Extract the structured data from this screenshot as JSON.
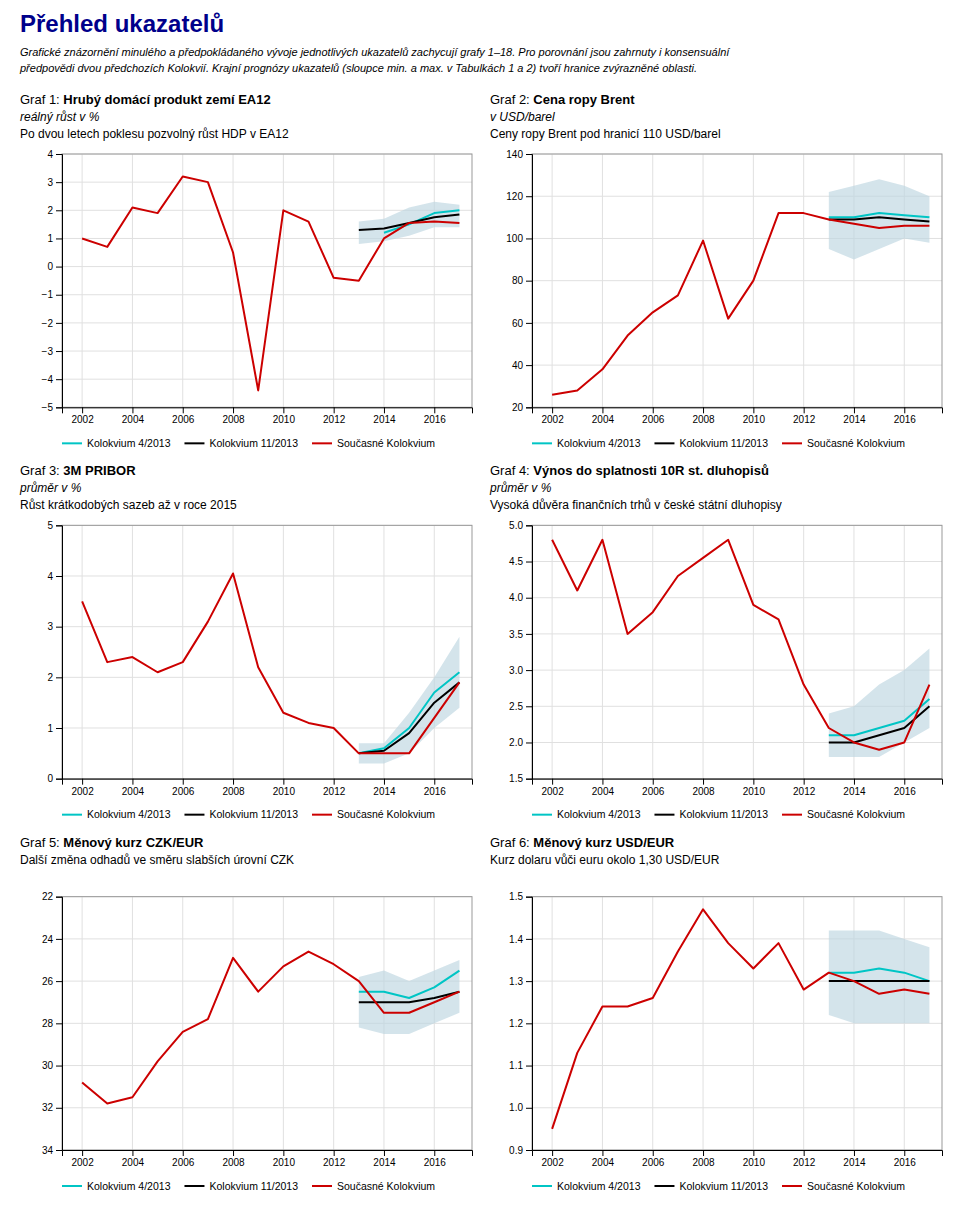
{
  "title": "Přehled ukazatelů",
  "color": "#00008B",
  "subtitle": [
    "Grafické znázornění minulého a předpokládaného vývoje jednotlivých ukazatelů zachycují grafy 1–18. Pro porovnání jsou zahrnuty i konsensuální",
    "předpovědi dvou předchozích Kolokvií. Krajní prognózy ukazatelů (sloupce min. a max. v Tabulkách 1 a 2) tvoří hranice zvýrazněné oblasti."
  ],
  "chart_data": [
    {
      "type": "line",
      "label": "Graf 1: ",
      "title": "Hrubý domácí produkt zemí EA12",
      "ylabel": "reálný růst v %",
      "subtitle": "Po dvou letech poklesu pozvolný růst HDP v EA12",
      "xlim": [
        2001.2,
        2017.5
      ],
      "xticks": [
        2002,
        2004,
        2006,
        2008,
        2010,
        2012,
        2014,
        2016
      ],
      "ylim": [
        -5,
        4
      ],
      "yticks": [
        {
          "value": -5,
          "label": "−5"
        },
        {
          "value": -4,
          "label": "−4"
        },
        {
          "value": -3,
          "label": "−3"
        },
        {
          "value": -2,
          "label": "−2"
        },
        {
          "value": -1,
          "label": "−1"
        },
        0,
        1,
        2,
        3,
        4
      ],
      "grid": true,
      "legend": "lower left",
      "band": {
        "color": "#BDD5E0",
        "x": [
          2013,
          2014,
          2015,
          2016,
          2017
        ],
        "low": [
          0.8,
          0.9,
          1.1,
          1.4,
          1.4
        ],
        "high": [
          1.6,
          1.7,
          2.1,
          2.3,
          2.2
        ]
      },
      "series": [
        {
          "name": "Kolokvium 4/2013",
          "color": "#00C5C5",
          "x": [
            2014,
            2015,
            2016,
            2017
          ],
          "values": [
            1.2,
            1.5,
            1.9,
            2.0
          ]
        },
        {
          "name": "Kolokvium 11/2013",
          "color": "#000000",
          "x": [
            2013,
            2014,
            2015,
            2016,
            2017
          ],
          "values": [
            1.3,
            1.35,
            1.55,
            1.75,
            1.85
          ]
        },
        {
          "name": "Současné Kolokvium",
          "color": "#CC0000",
          "x": [
            2002,
            2003,
            2004,
            2005,
            2006,
            2007,
            2008,
            2009,
            2010,
            2011,
            2012,
            2013,
            2014,
            2015,
            2016,
            2017
          ],
          "values": [
            1.0,
            0.7,
            2.1,
            1.9,
            3.2,
            3.0,
            0.5,
            -4.4,
            2.0,
            1.6,
            -0.4,
            -0.5,
            1.0,
            1.55,
            1.6,
            1.55
          ]
        }
      ]
    },
    {
      "type": "line",
      "label": "Graf 2: ",
      "title": "Cena ropy Brent",
      "ylabel": "v USD/barel",
      "subtitle": "Ceny ropy Brent pod hranicí 110 USD/barel",
      "xlim": [
        2001.2,
        2017.5
      ],
      "xticks": [
        2002,
        2004,
        2006,
        2008,
        2010,
        2012,
        2014,
        2016
      ],
      "ylim": [
        20,
        140
      ],
      "yticks": [
        20,
        40,
        60,
        80,
        100,
        120,
        140
      ],
      "grid": true,
      "legend": "lower left",
      "band": {
        "color": "#BDD5E0",
        "x": [
          2013,
          2014,
          2015,
          2016,
          2017
        ],
        "low": [
          95,
          90,
          95,
          100,
          98
        ],
        "high": [
          122,
          125,
          128,
          125,
          120
        ]
      },
      "series": [
        {
          "name": "Kolokvium 4/2013",
          "color": "#00C5C5",
          "x": [
            2013,
            2014,
            2015,
            2016,
            2017
          ],
          "values": [
            110,
            110,
            112,
            111,
            110
          ]
        },
        {
          "name": "Kolokvium 11/2013",
          "color": "#000000",
          "x": [
            2013,
            2014,
            2015,
            2016,
            2017
          ],
          "values": [
            109,
            109,
            110,
            109,
            108
          ]
        },
        {
          "name": "Současné Kolokvium",
          "color": "#CC0000",
          "x": [
            2002,
            2003,
            2004,
            2005,
            2006,
            2007,
            2008,
            2009,
            2010,
            2011,
            2012,
            2013,
            2014,
            2015,
            2016,
            2017
          ],
          "values": [
            26,
            28,
            38,
            54,
            65,
            73,
            99,
            62,
            80,
            112,
            112,
            109,
            107,
            105,
            106,
            106
          ]
        }
      ]
    },
    {
      "type": "line",
      "label": "Graf 3: ",
      "title": "3M PRIBOR",
      "ylabel": "průměr v %",
      "subtitle": "Růst krátkodobých sazeb až v roce 2015",
      "xlim": [
        2001.2,
        2017.5
      ],
      "xticks": [
        2002,
        2004,
        2006,
        2008,
        2010,
        2012,
        2014,
        2016
      ],
      "ylim": [
        0,
        5
      ],
      "yticks": [
        0,
        1,
        2,
        3,
        4,
        5
      ],
      "grid": true,
      "legend": "lower left",
      "band": {
        "color": "#BDD5E0",
        "x": [
          2013,
          2014,
          2015,
          2016,
          2017
        ],
        "low": [
          0.3,
          0.3,
          0.5,
          1.0,
          1.4
        ],
        "high": [
          0.7,
          0.7,
          1.3,
          2.0,
          2.8
        ]
      },
      "series": [
        {
          "name": "Kolokvium 4/2013",
          "color": "#00C5C5",
          "x": [
            2013,
            2014,
            2015,
            2016,
            2017
          ],
          "values": [
            0.5,
            0.6,
            1.0,
            1.7,
            2.1
          ]
        },
        {
          "name": "Kolokvium 11/2013",
          "color": "#000000",
          "x": [
            2013,
            2014,
            2015,
            2016,
            2017
          ],
          "values": [
            0.5,
            0.55,
            0.9,
            1.5,
            1.9
          ]
        },
        {
          "name": "Současné Kolokvium",
          "color": "#CC0000",
          "x": [
            2002,
            2003,
            2004,
            2005,
            2006,
            2007,
            2008,
            2009,
            2010,
            2011,
            2012,
            2013,
            2014,
            2015,
            2016,
            2017
          ],
          "values": [
            3.5,
            2.3,
            2.4,
            2.1,
            2.3,
            3.1,
            4.05,
            2.2,
            1.3,
            1.1,
            1.0,
            0.5,
            0.5,
            0.5,
            1.2,
            1.9
          ]
        }
      ]
    },
    {
      "type": "line",
      "label": "Graf 4: ",
      "title": "Výnos do splatnosti 10R st. dluhopisů",
      "ylabel": "průměr v %",
      "subtitle": "Vysoká důvěra finančních trhů v české státní dluhopisy",
      "xlim": [
        2001.2,
        2017.5
      ],
      "xticks": [
        2002,
        2004,
        2006,
        2008,
        2010,
        2012,
        2014,
        2016
      ],
      "ylim": [
        1.5,
        5.0
      ],
      "yticks": [
        1.5,
        {
          "value": 2.0,
          "label": "2.0"
        },
        2.5,
        {
          "value": 3.0,
          "label": "3.0"
        },
        3.5,
        {
          "value": 4.0,
          "label": "4.0"
        },
        4.5,
        {
          "value": 5.0,
          "label": "5.0"
        }
      ],
      "grid": true,
      "legend": "lower left",
      "band": {
        "color": "#BDD5E0",
        "x": [
          2013,
          2014,
          2015,
          2016,
          2017
        ],
        "low": [
          1.8,
          1.8,
          1.8,
          2.0,
          2.2
        ],
        "high": [
          2.4,
          2.5,
          2.8,
          3.0,
          3.3
        ]
      },
      "series": [
        {
          "name": "Kolokvium 4/2013",
          "color": "#00C5C5",
          "x": [
            2013,
            2014,
            2015,
            2016,
            2017
          ],
          "values": [
            2.1,
            2.1,
            2.2,
            2.3,
            2.6
          ]
        },
        {
          "name": "Kolokvium 11/2013",
          "color": "#000000",
          "x": [
            2013,
            2014,
            2015,
            2016,
            2017
          ],
          "values": [
            2.0,
            2.0,
            2.1,
            2.2,
            2.5
          ]
        },
        {
          "name": "Současné Kolokvium",
          "color": "#CC0000",
          "x": [
            2002,
            2003,
            2004,
            2005,
            2006,
            2007,
            2008,
            2009,
            2010,
            2011,
            2012,
            2013,
            2014,
            2015,
            2016,
            2017
          ],
          "values": [
            4.8,
            4.1,
            4.8,
            3.5,
            3.8,
            4.3,
            4.55,
            4.8,
            3.9,
            3.7,
            2.8,
            2.2,
            2.0,
            1.9,
            2.0,
            2.8
          ]
        }
      ]
    },
    {
      "type": "line",
      "label": "Graf 5: ",
      "title": "Měnový kurz CZK/EUR",
      "subtitle": "Další změna odhadů ve směru slabších úrovní CZK",
      "xlim": [
        2001.2,
        2017.5
      ],
      "xticks": [
        2002,
        2004,
        2006,
        2008,
        2010,
        2012,
        2014,
        2016
      ],
      "ylim": [
        34,
        22
      ],
      "yticks": [
        22,
        24,
        26,
        28,
        30,
        32,
        34
      ],
      "grid": true,
      "legend": "lower left",
      "band": {
        "color": "#BDD5E0",
        "x": [
          2013,
          2014,
          2015,
          2016,
          2017
        ],
        "low": [
          25.8,
          25.5,
          26.0,
          25.5,
          25.0
        ],
        "high": [
          28.2,
          28.5,
          28.5,
          28.0,
          27.5
        ]
      },
      "series": [
        {
          "name": "Kolokvium 4/2013",
          "color": "#00C5C5",
          "x": [
            2013,
            2014,
            2015,
            2016,
            2017
          ],
          "values": [
            26.5,
            26.5,
            26.8,
            26.3,
            25.5
          ]
        },
        {
          "name": "Kolokvium 11/2013",
          "color": "#000000",
          "x": [
            2013,
            2014,
            2015,
            2016,
            2017
          ],
          "values": [
            27.0,
            27.0,
            27.0,
            26.8,
            26.5
          ]
        },
        {
          "name": "Současné Kolokvium",
          "color": "#CC0000",
          "x": [
            2002,
            2003,
            2004,
            2005,
            2006,
            2007,
            2008,
            2009,
            2010,
            2011,
            2012,
            2013,
            2014,
            2015,
            2016,
            2017
          ],
          "values": [
            30.8,
            31.8,
            31.5,
            29.8,
            28.4,
            27.8,
            24.9,
            26.5,
            25.3,
            24.6,
            25.2,
            26.0,
            27.5,
            27.5,
            27.0,
            26.5
          ]
        }
      ]
    },
    {
      "type": "line",
      "label": "Graf 6: ",
      "title": "Měnový kurz USD/EUR",
      "subtitle": "Kurz dolaru vůči euru okolo 1,30 USD/EUR",
      "xlim": [
        2001.2,
        2017.5
      ],
      "xticks": [
        2002,
        2004,
        2006,
        2008,
        2010,
        2012,
        2014,
        2016
      ],
      "ylim": [
        0.9,
        1.5
      ],
      "yticks": [
        0.9,
        {
          "value": 1.0,
          "label": "1.0"
        },
        1.1,
        1.2,
        1.3,
        1.4,
        1.5
      ],
      "grid": true,
      "legend": "lower left",
      "band": {
        "color": "#BDD5E0",
        "x": [
          2013,
          2014,
          2015,
          2016,
          2017
        ],
        "low": [
          1.22,
          1.2,
          1.2,
          1.2,
          1.2
        ],
        "high": [
          1.42,
          1.42,
          1.42,
          1.4,
          1.38
        ]
      },
      "series": [
        {
          "name": "Kolokvium 4/2013",
          "color": "#00C5C5",
          "x": [
            2013,
            2014,
            2015,
            2016,
            2017
          ],
          "values": [
            1.32,
            1.32,
            1.33,
            1.32,
            1.3
          ]
        },
        {
          "name": "Kolokvium 11/2013",
          "color": "#000000",
          "x": [
            2013,
            2014,
            2015,
            2016,
            2017
          ],
          "values": [
            1.3,
            1.3,
            1.3,
            1.3,
            1.3
          ]
        },
        {
          "name": "Současné Kolokvium",
          "color": "#CC0000",
          "x": [
            2002,
            2003,
            2004,
            2005,
            2006,
            2007,
            2008,
            2009,
            2010,
            2011,
            2012,
            2013,
            2014,
            2015,
            2016,
            2017
          ],
          "values": [
            0.95,
            1.13,
            1.24,
            1.24,
            1.26,
            1.37,
            1.47,
            1.39,
            1.33,
            1.39,
            1.28,
            1.32,
            1.3,
            1.27,
            1.28,
            1.27
          ]
        }
      ]
    }
  ]
}
